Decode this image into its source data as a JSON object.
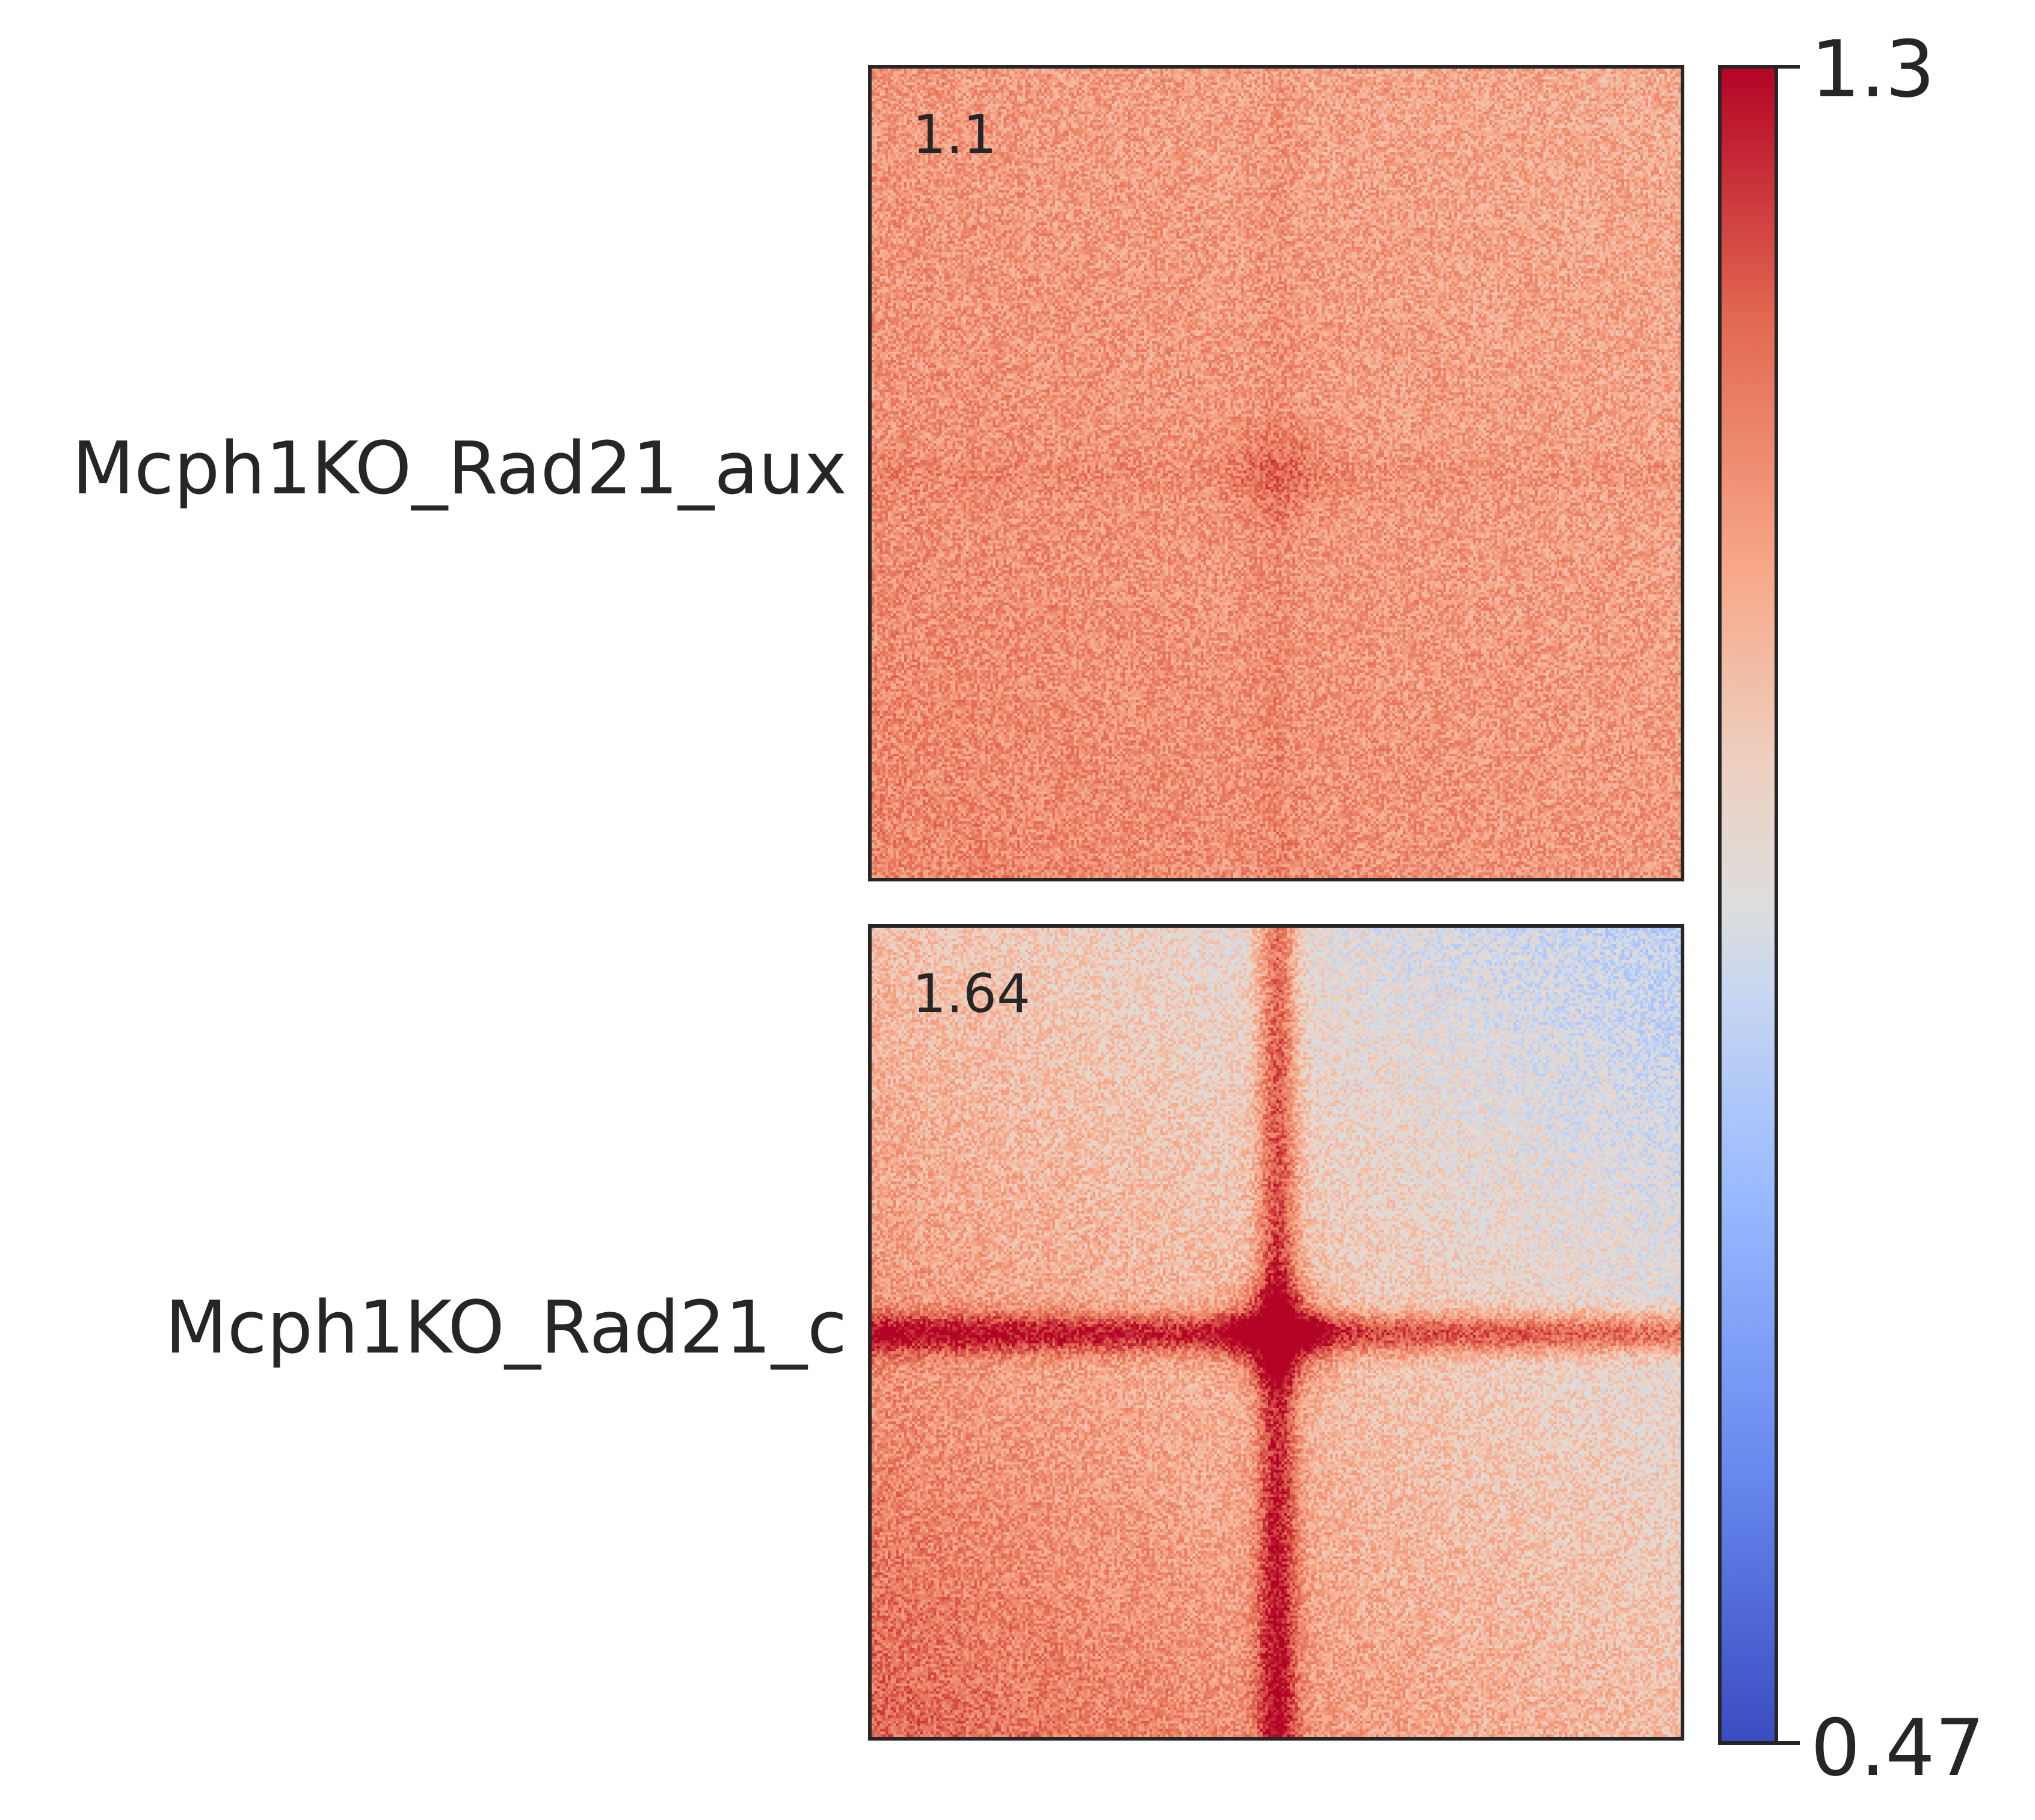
{
  "chart_data": {
    "type": "heatmap",
    "title": "",
    "xlabel": "",
    "ylabel": "",
    "colormap": "coolwarm",
    "colorbar": {
      "min": 0.47,
      "max": 1.3,
      "min_label": "0.47",
      "max_label": "1.3"
    },
    "panels": [
      {
        "name": "Mcph1KO_Rad21_aux",
        "score": "1.1",
        "center_enrichment": 1.1,
        "background_value": 1.08,
        "center_value": 1.16,
        "stripe_value": 1.12
      },
      {
        "name": "Mcph1KO_Rad21_c",
        "score": "1.64",
        "center_enrichment": 1.64,
        "background_value": 1.0,
        "center_value": 1.3,
        "stripe_value": 1.24
      }
    ],
    "colors": {
      "low": "#3b4cc0",
      "mid": "#dddddd",
      "high": "#b40426"
    }
  }
}
